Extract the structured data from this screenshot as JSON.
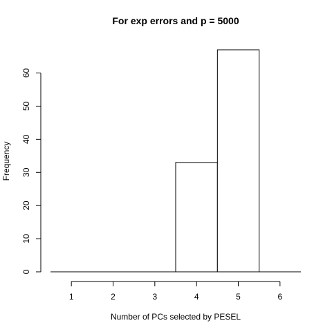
{
  "chart_data": {
    "type": "bar",
    "title": "For exp errors and p = 5000",
    "xlabel": "Number of PCs selected by PESEL",
    "ylabel": "Frequency",
    "categories": [
      "1",
      "2",
      "3",
      "4",
      "5",
      "6"
    ],
    "values": [
      0,
      0,
      0,
      33,
      67,
      0
    ],
    "xlim": [
      0.5,
      6.5
    ],
    "ylim": [
      0,
      67
    ],
    "x_ticks": [
      1,
      2,
      3,
      4,
      5,
      6
    ],
    "y_ticks": [
      0,
      10,
      20,
      30,
      40,
      50,
      60
    ],
    "grid": false,
    "colors": {
      "bar_fill": "#ffffff",
      "bar_stroke": "#000000"
    }
  }
}
